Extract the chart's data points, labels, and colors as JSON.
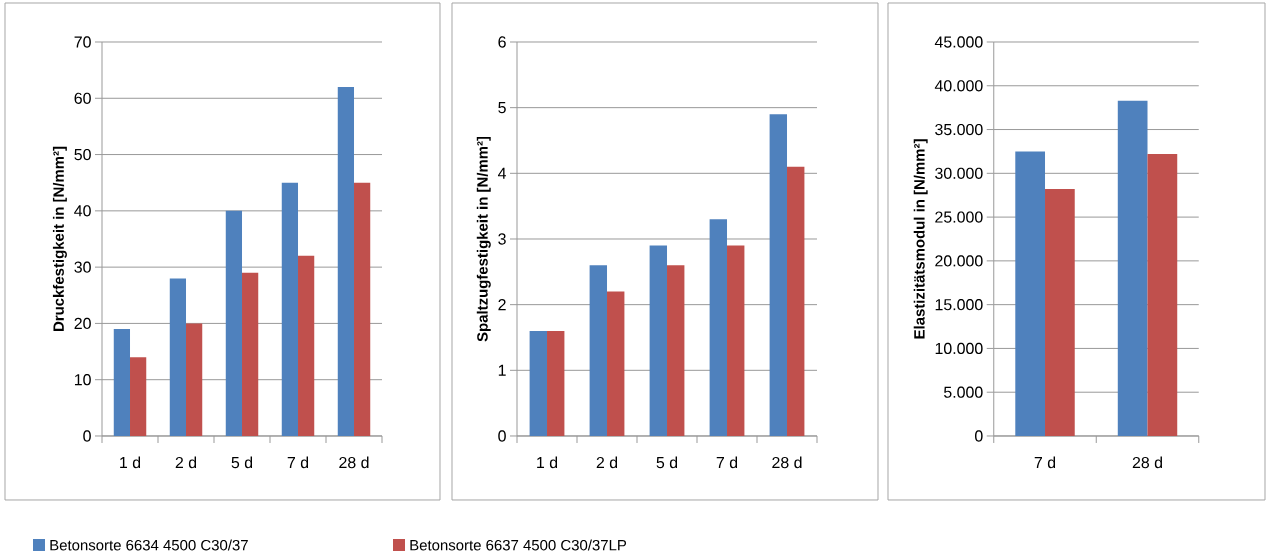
{
  "chart_data": [
    {
      "type": "bar",
      "ylabel": "Druckfestigkeit in [N/mm²]",
      "categories": [
        "1 d",
        "2 d",
        "5 d",
        "7 d",
        "28 d"
      ],
      "series": [
        {
          "name": "Betonsorte 6634 4500 C30/37",
          "color": "#4f81bd",
          "values": [
            19,
            28,
            40,
            45,
            62
          ]
        },
        {
          "name": "Betonsorte 6637 4500 C30/37LP",
          "color": "#c0504d",
          "values": [
            14,
            20,
            29,
            32,
            45
          ]
        }
      ],
      "ylim": [
        0,
        70
      ],
      "yticks": [
        0,
        10,
        20,
        30,
        40,
        50,
        60,
        70
      ],
      "grid": "y",
      "legend": "bottom"
    },
    {
      "type": "bar",
      "ylabel": "Spaltzugfestigkeit in [N/mm²]",
      "categories": [
        "1 d",
        "2 d",
        "5 d",
        "7 d",
        "28 d"
      ],
      "series": [
        {
          "color": "#4f81bd",
          "values": [
            1.6,
            2.6,
            2.9,
            3.3,
            4.9
          ]
        },
        {
          "color": "#c0504d",
          "values": [
            1.6,
            2.2,
            2.6,
            2.9,
            4.1
          ]
        }
      ],
      "ylim": [
        0,
        6
      ],
      "yticks": [
        0,
        1,
        2,
        3,
        4,
        5,
        6
      ],
      "grid": "y"
    },
    {
      "type": "bar",
      "ylabel": "Elastizitätsmodul in [N/mm²]",
      "categories": [
        "7 d",
        "28 d"
      ],
      "series": [
        {
          "color": "#4f81bd",
          "values": [
            32500,
            38300
          ]
        },
        {
          "color": "#c0504d",
          "values": [
            28200,
            32200
          ]
        }
      ],
      "ylim": [
        0,
        45000
      ],
      "yticks": [
        {
          "value": 0,
          "label": "0"
        },
        {
          "value": 5000,
          "label": "5.000"
        },
        {
          "value": 10000,
          "label": "10.000"
        },
        {
          "value": 15000,
          "label": "15.000"
        },
        {
          "value": 20000,
          "label": "20.000"
        },
        {
          "value": 25000,
          "label": "25.000"
        },
        {
          "value": 30000,
          "label": "30.000"
        },
        {
          "value": 35000,
          "label": "35.000"
        },
        {
          "value": 40000,
          "label": "40.000"
        },
        {
          "value": 45000,
          "label": "45.000"
        }
      ],
      "grid": "y"
    }
  ]
}
